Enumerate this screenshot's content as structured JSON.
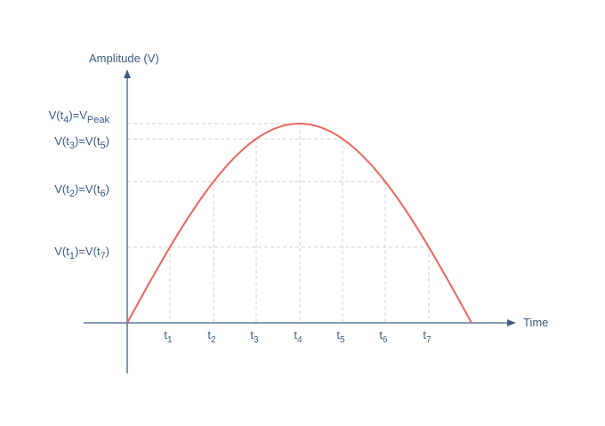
{
  "axes": {
    "y_label": "Amplitude (V)",
    "x_label": "Time"
  },
  "y_levels": [
    {
      "id": "peak",
      "parts": [
        [
          "V(t",
          ""
        ],
        [
          "4",
          "sub"
        ],
        [
          ")=V",
          ""
        ],
        [
          "Peak",
          "sub"
        ]
      ]
    },
    {
      "id": "l3",
      "parts": [
        [
          "V(t",
          ""
        ],
        [
          "3",
          "sub"
        ],
        [
          ")=V(t",
          ""
        ],
        [
          "5",
          "sub"
        ],
        [
          ")",
          ""
        ]
      ]
    },
    {
      "id": "l2",
      "parts": [
        [
          "V(t",
          ""
        ],
        [
          "2",
          "sub"
        ],
        [
          ")=V(t",
          ""
        ],
        [
          "6",
          "sub"
        ],
        [
          ")",
          ""
        ]
      ]
    },
    {
      "id": "l1",
      "parts": [
        [
          "V(t",
          ""
        ],
        [
          "1",
          "sub"
        ],
        [
          ")=V(t",
          ""
        ],
        [
          "7",
          "sub"
        ],
        [
          ")",
          ""
        ]
      ]
    }
  ],
  "x_ticks": [
    {
      "base": "t",
      "sub": "1"
    },
    {
      "base": "t",
      "sub": "2"
    },
    {
      "base": "t",
      "sub": "3"
    },
    {
      "base": "t",
      "sub": "4"
    },
    {
      "base": "t",
      "sub": "5"
    },
    {
      "base": "t",
      "sub": "6"
    },
    {
      "base": "t",
      "sub": "7"
    }
  ],
  "colors": {
    "axis": "#3f5f86",
    "curve": "#e8665e",
    "guide": "#cfcfcf",
    "text": "#3a5a86"
  }
}
